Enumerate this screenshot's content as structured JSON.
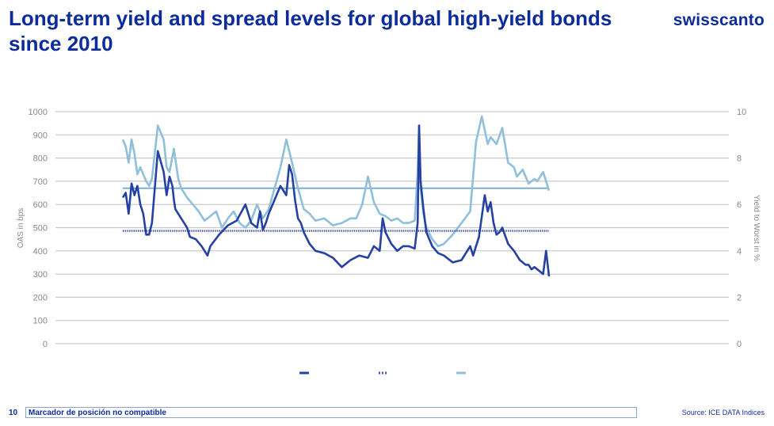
{
  "header": {
    "title": "Long-term yield and spread levels for global high-yield bonds since 2010",
    "logo": "swisscanto"
  },
  "footer": {
    "page_number": "10",
    "placeholder_text": "Marcador de posición no compatible",
    "source": "Source: ICE DATA Indices"
  },
  "colors": {
    "oas": "#2541a4",
    "oas_avg": "#3d56b0",
    "ytw": "#8fbfd9",
    "ytw_avg": "#74a9c8",
    "grid": "#c9c9c9",
    "axis_text": "#888888",
    "title": "#0d2c9c"
  },
  "chart_data": {
    "type": "line",
    "title": "",
    "ylabel": "OAS in bps",
    "y2label": "Yield to Worst in %",
    "ylim": [
      0,
      1000
    ],
    "y2lim": [
      0,
      10
    ],
    "yticks": [
      "0",
      "100",
      "200",
      "300",
      "400",
      "500",
      "600",
      "700",
      "800",
      "900",
      "1000"
    ],
    "y2ticks": [
      "0",
      "2",
      "4",
      "6",
      "8",
      "10"
    ],
    "x_start": 2010.0,
    "x_end": 2023.0,
    "grid": true,
    "legend": "bottom (entries shown as line swatches only)",
    "series": [
      {
        "key": "oas",
        "axis": "left",
        "style": "solid",
        "x": [
          2010.0,
          2010.1,
          2010.2,
          2010.3,
          2010.4,
          2010.5,
          2010.6,
          2010.7,
          2010.8,
          2010.9,
          2011.0,
          2011.2,
          2011.4,
          2011.5,
          2011.6,
          2011.7,
          2011.75,
          2011.8,
          2011.9,
          2012.0,
          2012.1,
          2012.2,
          2012.3,
          2012.5,
          2012.7,
          2012.9,
          2013.0,
          2013.3,
          2013.6,
          2013.9,
          2014.2,
          2014.4,
          2014.6,
          2014.7,
          2014.8,
          2014.9,
          2015.0,
          2015.2,
          2015.4,
          2015.6,
          2015.7,
          2015.8,
          2015.9,
          2016.0,
          2016.1,
          2016.2,
          2016.4,
          2016.6,
          2016.9,
          2017.2,
          2017.5,
          2017.8,
          2018.1,
          2018.4,
          2018.6,
          2018.8,
          2018.9,
          2019.0,
          2019.2,
          2019.4,
          2019.6,
          2019.8,
          2020.0,
          2020.1,
          2020.15,
          2020.2,
          2020.3,
          2020.4,
          2020.6,
          2020.8,
          2021.0,
          2021.3,
          2021.6,
          2021.9,
          2022.0,
          2022.2,
          2022.4,
          2022.5,
          2022.6,
          2022.7,
          2022.8,
          2022.9,
          2023.0,
          2023.2,
          2023.4,
          2023.6,
          2023.8,
          2023.9,
          2024.0,
          2024.1,
          2024.2,
          2024.4,
          2024.5,
          2024.6
        ],
        "y": [
          630,
          650,
          560,
          690,
          640,
          680,
          600,
          560,
          470,
          470,
          520,
          830,
          740,
          640,
          720,
          680,
          620,
          580,
          560,
          540,
          520,
          500,
          460,
          450,
          420,
          380,
          420,
          470,
          510,
          530,
          600,
          520,
          500,
          570,
          490,
          520,
          560,
          620,
          680,
          640,
          770,
          730,
          620,
          540,
          520,
          480,
          430,
          400,
          390,
          370,
          330,
          360,
          380,
          370,
          420,
          400,
          540,
          480,
          430,
          400,
          420,
          420,
          410,
          520,
          940,
          700,
          580,
          480,
          420,
          390,
          380,
          350,
          360,
          420,
          380,
          460,
          640,
          570,
          610,
          520,
          470,
          480,
          500,
          430,
          400,
          360,
          340,
          340,
          320,
          330,
          320,
          300,
          400,
          290
        ]
      },
      {
        "key": "oas_avg",
        "axis": "left",
        "style": "dotted",
        "x": [
          2010.0,
          2024.6
        ],
        "y": [
          486,
          486
        ]
      },
      {
        "key": "ytw",
        "axis": "right",
        "style": "solid",
        "x": [
          2010.0,
          2010.1,
          2010.2,
          2010.3,
          2010.4,
          2010.5,
          2010.6,
          2010.8,
          2010.9,
          2011.0,
          2011.2,
          2011.4,
          2011.5,
          2011.6,
          2011.75,
          2011.9,
          2012.0,
          2012.2,
          2012.4,
          2012.6,
          2012.8,
          2013.0,
          2013.2,
          2013.4,
          2013.6,
          2013.8,
          2014.0,
          2014.2,
          2014.4,
          2014.6,
          2014.8,
          2015.0,
          2015.2,
          2015.4,
          2015.6,
          2015.8,
          2016.0,
          2016.2,
          2016.4,
          2016.6,
          2016.9,
          2017.2,
          2017.5,
          2017.8,
          2018.0,
          2018.2,
          2018.4,
          2018.6,
          2018.8,
          2019.0,
          2019.2,
          2019.4,
          2019.6,
          2019.8,
          2020.0,
          2020.1,
          2020.15,
          2020.2,
          2020.3,
          2020.4,
          2020.6,
          2020.8,
          2021.0,
          2021.3,
          2021.6,
          2021.9,
          2022.1,
          2022.3,
          2022.5,
          2022.6,
          2022.8,
          2023.0,
          2023.2,
          2023.4,
          2023.5,
          2023.7,
          2023.9,
          2024.1,
          2024.2,
          2024.4,
          2024.6
        ],
        "y": [
          8.8,
          8.5,
          7.8,
          8.8,
          8.2,
          7.3,
          7.6,
          7.0,
          6.8,
          7.1,
          9.4,
          8.8,
          7.6,
          7.4,
          8.4,
          7.1,
          6.7,
          6.3,
          6.0,
          5.7,
          5.3,
          5.5,
          5.7,
          5.0,
          5.4,
          5.7,
          5.2,
          5.0,
          5.3,
          6.0,
          5.4,
          5.8,
          6.7,
          7.6,
          8.8,
          7.8,
          6.7,
          5.8,
          5.6,
          5.3,
          5.4,
          5.1,
          5.2,
          5.4,
          5.4,
          6.0,
          7.2,
          6.1,
          5.6,
          5.5,
          5.3,
          5.4,
          5.2,
          5.2,
          5.3,
          7.4,
          9.4,
          6.7,
          5.6,
          5.0,
          4.5,
          4.2,
          4.3,
          4.7,
          5.2,
          5.7,
          8.7,
          9.8,
          8.6,
          8.9,
          8.6,
          9.3,
          7.8,
          7.6,
          7.2,
          7.5,
          6.9,
          7.1,
          7.0,
          7.4,
          6.6
        ]
      },
      {
        "key": "ytw_avg",
        "axis": "right",
        "style": "solid",
        "x": [
          2010.0,
          2024.6
        ],
        "y": [
          6.7,
          6.7
        ]
      }
    ]
  }
}
